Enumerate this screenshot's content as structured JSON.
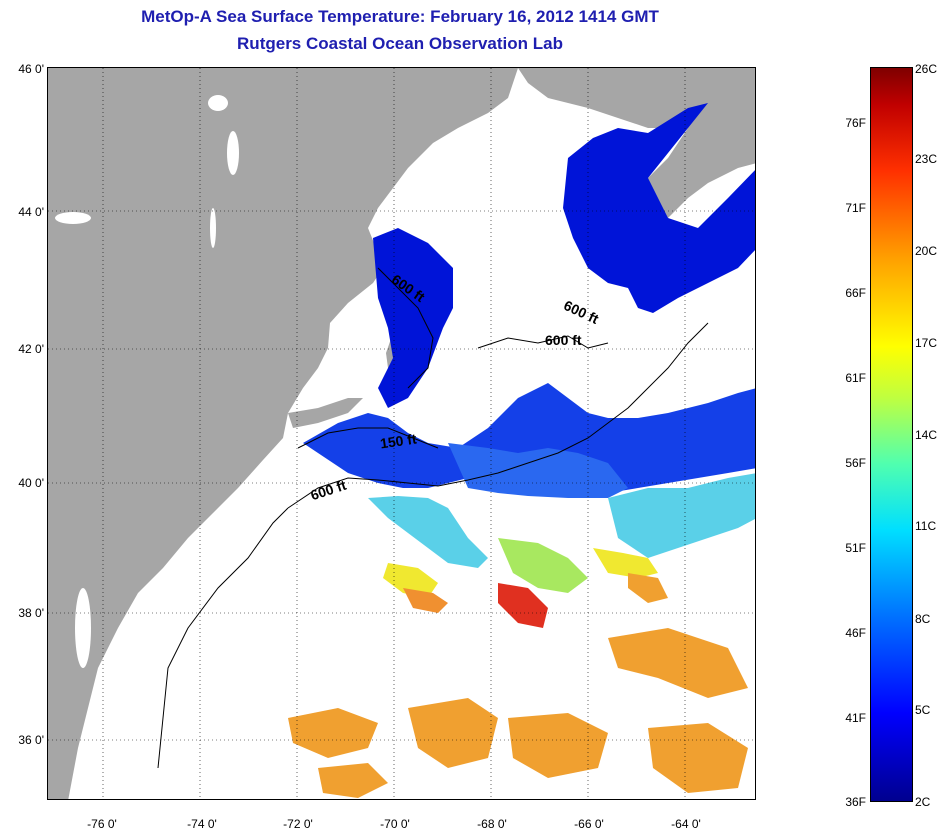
{
  "title": {
    "line1": "MetOp-A Sea Surface Temperature:  February 16, 2012 1414 GMT",
    "line2": "Rutgers Coastal Ocean Observation Lab"
  },
  "map": {
    "lat_labels": [
      "46 0'",
      "44 0'",
      "42 0'",
      "40 0'",
      "38 0'",
      "36 0'"
    ],
    "lon_labels": [
      "-76 0'",
      "-74 0'",
      "-72 0'",
      "-70 0'",
      "-68 0'",
      "-66 0'",
      "-64 0'"
    ],
    "contour_labels": [
      "600 ft",
      "600 ft",
      "600 ft",
      "150 ft",
      "600 ft"
    ],
    "colors": {
      "land": "#a6a6a6",
      "cloud": "#ffffff",
      "deep_blue": "#0010d8",
      "mid_blue": "#1a5ce8",
      "cyan": "#40c8f0",
      "yellow": "#f0f020",
      "orange": "#f0a030",
      "red": "#e03020"
    }
  },
  "colorbar": {
    "fahrenheit": [
      "76F",
      "71F",
      "66F",
      "61F",
      "56F",
      "51F",
      "46F",
      "41F",
      "36F"
    ],
    "celsius": [
      "26C",
      "23C",
      "20C",
      "17C",
      "14C",
      "11C",
      "8C",
      "5C",
      "2C"
    ]
  }
}
